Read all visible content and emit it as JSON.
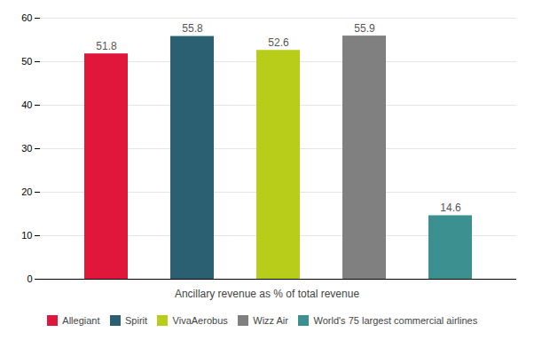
{
  "chart_data": {
    "type": "bar",
    "xlabel": "Ancillary revenue as % of total revenue",
    "categories": [
      "Allegiant",
      "Spirit",
      "VivaAerobus",
      "Wizz Air",
      "World's 75 largest commercial airlines"
    ],
    "values": [
      51.8,
      55.8,
      52.6,
      55.9,
      14.6
    ],
    "colors": [
      "#e0173b",
      "#2b5f72",
      "#b8cc1a",
      "#808080",
      "#3d9090"
    ],
    "ylim": [
      0,
      60
    ],
    "yticks": [
      0,
      10,
      20,
      30,
      40,
      50,
      60
    ],
    "grid": true,
    "data_labels": true,
    "tick_labels": "y",
    "legend": "bottom"
  }
}
